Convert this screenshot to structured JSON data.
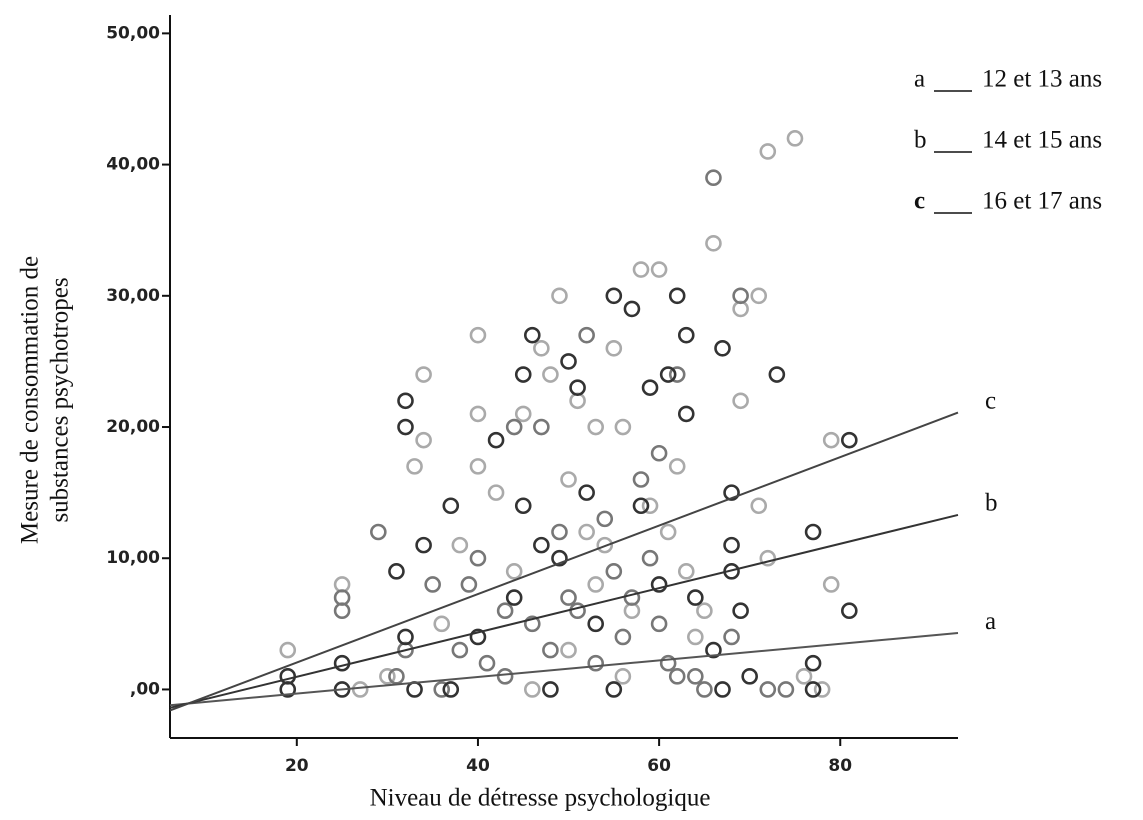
{
  "chart_data": {
    "type": "scatter",
    "xlabel": "Niveau de détresse psychologique",
    "ylabel": [
      "Mesure de consommation de",
      "substances psychotropes"
    ],
    "xlim": [
      6,
      93
    ],
    "ylim": [
      -3.7,
      51.4
    ],
    "xticks": [
      20,
      40,
      60,
      80
    ],
    "yticks": [
      {
        "value": 0,
        "label": ",00"
      },
      {
        "value": 10,
        "label": "10,00"
      },
      {
        "value": 20,
        "label": "20,00"
      },
      {
        "value": 30,
        "label": "30,00"
      },
      {
        "value": 40,
        "label": "40,00"
      },
      {
        "value": 50,
        "label": "50,00"
      }
    ],
    "series": [
      {
        "color": "#aaaaaa",
        "x": [
          19,
          25,
          27,
          30,
          33,
          34,
          34,
          36,
          38,
          40,
          40,
          40,
          42,
          44,
          45,
          47,
          48,
          49,
          50,
          51,
          52,
          53,
          54,
          55,
          56,
          57,
          58,
          59,
          60,
          61,
          62,
          63,
          64,
          66,
          69,
          69,
          71,
          71,
          72,
          75,
          72,
          76,
          79,
          79,
          78,
          46,
          50,
          53,
          56,
          65
        ],
        "values": [
          3,
          8,
          0,
          1,
          17,
          24,
          19,
          5,
          11,
          27,
          17,
          21,
          15,
          9,
          21,
          26,
          24,
          30,
          16,
          22,
          12,
          20,
          11,
          26,
          20,
          6,
          32,
          14,
          32,
          12,
          17,
          9,
          4,
          34,
          22,
          29,
          30,
          14,
          41,
          42,
          10,
          1,
          19,
          8,
          0,
          0,
          3,
          8,
          1,
          6
        ]
      },
      {
        "color": "#777777",
        "x": [
          25,
          25,
          29,
          31,
          32,
          35,
          38,
          40,
          41,
          43,
          44,
          46,
          47,
          48,
          49,
          50,
          51,
          52,
          53,
          54,
          55,
          56,
          57,
          58,
          59,
          60,
          60,
          61,
          62,
          62,
          64,
          65,
          66,
          68,
          69,
          72,
          74,
          36,
          39,
          43
        ],
        "values": [
          6,
          7,
          12,
          1,
          3,
          8,
          3,
          10,
          2,
          6,
          20,
          5,
          20,
          3,
          12,
          7,
          6,
          27,
          2,
          13,
          9,
          4,
          7,
          16,
          10,
          5,
          18,
          2,
          24,
          1,
          1,
          0,
          39,
          4,
          30,
          0,
          0,
          0,
          8,
          1
        ]
      },
      {
        "color": "#333333",
        "x": [
          19,
          19,
          25,
          25,
          31,
          32,
          32,
          32,
          33,
          34,
          37,
          37,
          40,
          42,
          45,
          46,
          47,
          48,
          50,
          51,
          52,
          55,
          57,
          58,
          59,
          60,
          61,
          62,
          63,
          63,
          64,
          66,
          67,
          67,
          68,
          68,
          68,
          69,
          73,
          77,
          77,
          77,
          81,
          81,
          70,
          55,
          44,
          45,
          49,
          53
        ],
        "values": [
          0,
          1,
          0,
          2,
          9,
          22,
          20,
          4,
          0,
          11,
          14,
          0,
          4,
          19,
          24,
          27,
          11,
          0,
          25,
          23,
          15,
          30,
          29,
          14,
          23,
          8,
          24,
          30,
          27,
          21,
          7,
          3,
          0,
          26,
          9,
          15,
          11,
          6,
          24,
          12,
          2,
          0,
          19,
          6,
          1,
          0,
          7,
          14,
          10,
          5
        ]
      }
    ],
    "fit_lines": [
      {
        "name": "a",
        "label": "12 et 13 ans",
        "color": "#555555",
        "x": [
          6,
          93
        ],
        "values": [
          -1.2,
          4.3
        ]
      },
      {
        "name": "b",
        "label": "14 et 15 ans",
        "color": "#333333",
        "x": [
          6,
          93
        ],
        "values": [
          -1.4,
          13.3
        ]
      },
      {
        "name": "c",
        "label": "16 et 17 ans",
        "color": "#444444",
        "x": [
          6,
          93
        ],
        "values": [
          -1.6,
          21.1
        ]
      }
    ]
  }
}
